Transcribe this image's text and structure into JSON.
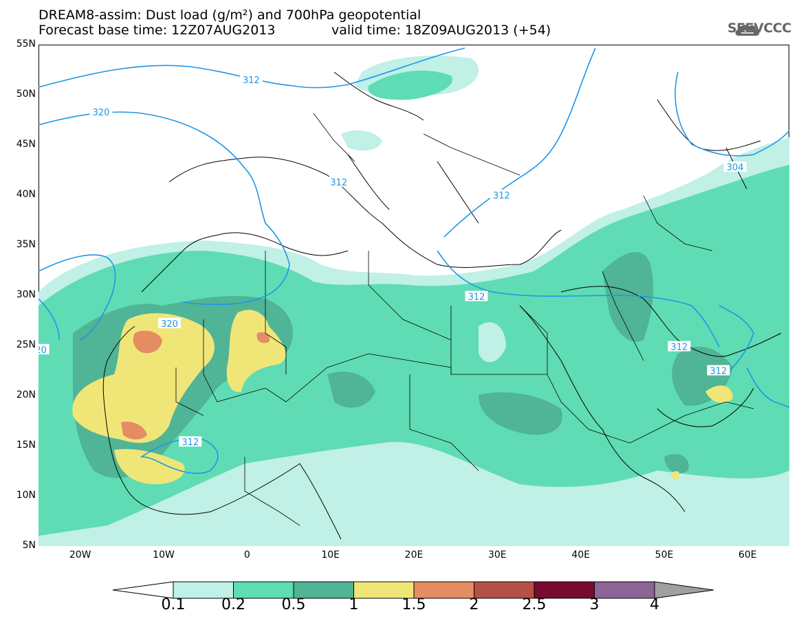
{
  "header": {
    "title": "DREAM8-assim: Dust load (g/m²) and 700hPa geopotential",
    "base_time": "Forecast base time: 12Z07AUG2013",
    "valid_time": "valid time: 18Z09AUG2013 (+54)",
    "logo_text": "SEEVCCC"
  },
  "axes": {
    "lat_labels": [
      "55N",
      "50N",
      "45N",
      "40N",
      "35N",
      "30N",
      "25N",
      "20N",
      "15N",
      "10N",
      "5N"
    ],
    "lon_labels": [
      "20W",
      "10W",
      "0",
      "10E",
      "20E",
      "30E",
      "40E",
      "50E",
      "60E"
    ],
    "lat_range": [
      5,
      55
    ],
    "lon_range": [
      -25,
      65
    ]
  },
  "contour_labels": [
    {
      "text": "312",
      "lon": 0.5,
      "lat": 51.5
    },
    {
      "text": "320",
      "lon": -17.5,
      "lat": 48.3
    },
    {
      "text": "312",
      "lon": 11,
      "lat": 41.3
    },
    {
      "text": "312",
      "lon": 30.5,
      "lat": 40.0
    },
    {
      "text": "304",
      "lon": 58.5,
      "lat": 42.8
    },
    {
      "text": "312",
      "lon": 27.5,
      "lat": 29.9
    },
    {
      "text": "320",
      "lon": -9.3,
      "lat": 27.2
    },
    {
      "text": "20",
      "lon": -24.7,
      "lat": 24.6
    },
    {
      "text": "312",
      "lon": 51.8,
      "lat": 24.9
    },
    {
      "text": "312",
      "lon": 56.5,
      "lat": 22.5
    },
    {
      "text": "312",
      "lon": -6.8,
      "lat": 15.4
    }
  ],
  "colorbar": {
    "labels": [
      "0.1",
      "0.2",
      "0.5",
      "1",
      "1.5",
      "2",
      "2.5",
      "3",
      "4"
    ],
    "colors": [
      "#c0f0e6",
      "#5fdcb4",
      "#50b496",
      "#f0e678",
      "#e68c64",
      "#b45046",
      "#780a32",
      "#8c6496",
      "#a0a0a0"
    ]
  },
  "palette": {
    "contour_line": "#1e96e6",
    "coast_line": "#000000"
  }
}
